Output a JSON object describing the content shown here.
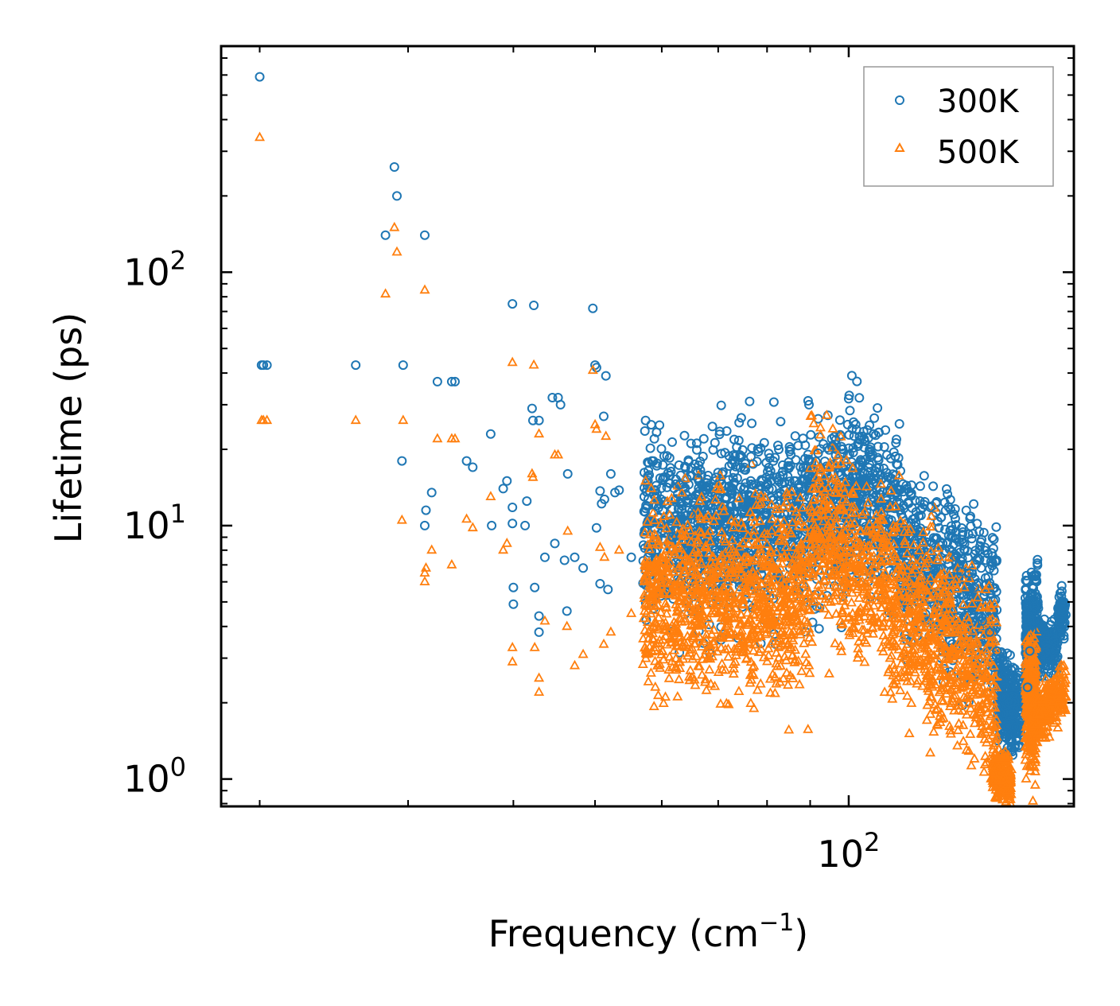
{
  "chart_data": {
    "type": "scatter",
    "xscale": "log",
    "yscale": "log",
    "xlabel": "Frequency (cm",
    "xlabel_sup": "−1",
    "xlabel_end": ")",
    "ylabel": "Lifetime (ps)",
    "xlim": [
      18,
      185
    ],
    "ylim": [
      0.78,
      780
    ],
    "x_ticks": [
      {
        "base": "10",
        "exp": "2",
        "value": 100
      }
    ],
    "y_ticks": [
      {
        "base": "10",
        "exp": "0",
        "value": 1
      },
      {
        "base": "10",
        "exp": "1",
        "value": 10
      },
      {
        "base": "10",
        "exp": "2",
        "value": 100
      }
    ],
    "legend": {
      "position": "top-right",
      "entries": [
        "300K",
        "500K"
      ]
    },
    "series": [
      {
        "name": "300K",
        "marker": "circle-open",
        "color": "#1f77b4",
        "points": [
          [
            20.0,
            590
          ],
          [
            20.1,
            43
          ],
          [
            20.2,
            43
          ],
          [
            20.4,
            43
          ],
          [
            26.0,
            43
          ],
          [
            28.2,
            140
          ],
          [
            28.9,
            260
          ],
          [
            29.1,
            200
          ],
          [
            29.6,
            43
          ],
          [
            29.5,
            18
          ],
          [
            31.4,
            140
          ],
          [
            32.5,
            37
          ],
          [
            32.0,
            13.5
          ],
          [
            31.5,
            11.5
          ],
          [
            31.4,
            10
          ],
          [
            33.8,
            37
          ],
          [
            34.1,
            37
          ],
          [
            35.2,
            18
          ],
          [
            35.8,
            17
          ],
          [
            37.6,
            23
          ],
          [
            39.3,
            15
          ],
          [
            38.9,
            14
          ],
          [
            37.7,
            10
          ],
          [
            39.9,
            75
          ],
          [
            42.3,
            74
          ],
          [
            42.1,
            29
          ],
          [
            42.2,
            26
          ],
          [
            42.9,
            26
          ],
          [
            39.9,
            11.8
          ],
          [
            39.9,
            10.2
          ],
          [
            41.3,
            10
          ],
          [
            41.5,
            12.5
          ],
          [
            40.0,
            5.7
          ],
          [
            40.0,
            4.9
          ],
          [
            42.4,
            5.7
          ],
          [
            42.9,
            4.4
          ],
          [
            42.9,
            3.8
          ],
          [
            43.6,
            7.5
          ],
          [
            44.8,
            8.5
          ],
          [
            44.5,
            32
          ],
          [
            45.2,
            32
          ],
          [
            45.5,
            30
          ],
          [
            46.4,
            16
          ],
          [
            47.3,
            7.5
          ],
          [
            46.0,
            7.3
          ],
          [
            46.3,
            4.6
          ],
          [
            48.4,
            6.8
          ],
          [
            49.7,
            72
          ],
          [
            50.0,
            43
          ],
          [
            50.2,
            42
          ],
          [
            51.5,
            39
          ],
          [
            50.7,
            13.7
          ],
          [
            50.9,
            12.2
          ],
          [
            51.2,
            27
          ],
          [
            51.3,
            12.7
          ],
          [
            52.2,
            16
          ],
          [
            52.8,
            13.5
          ],
          [
            53.4,
            13.8
          ],
          [
            50.2,
            9.8
          ],
          [
            50.7,
            5.9
          ],
          [
            51.8,
            5.6
          ],
          [
            55.2,
            7.5
          ],
          [
            57.2,
            13
          ],
          [
            57.4,
            26
          ],
          [
            58.3,
            25
          ],
          [
            58.8,
            22
          ],
          [
            58.4,
            18
          ],
          [
            59.1,
            12
          ],
          [
            61.3,
            18.5
          ],
          [
            60.3,
            15.5
          ],
          [
            61.8,
            9
          ],
          [
            63.0,
            14.5
          ],
          [
            65.0,
            11
          ],
          [
            67.3,
            22
          ],
          [
            66.2,
            15.4
          ],
          [
            69.6,
            15.5
          ],
          [
            71.3,
            12.8
          ],
          [
            73.0,
            19
          ],
          [
            74.3,
            19
          ],
          [
            76.0,
            12.5
          ],
          [
            77.0,
            17.5
          ],
          [
            79.0,
            15
          ],
          [
            80.6,
            18.5
          ],
          [
            82.6,
            20
          ],
          [
            85.1,
            19.6
          ],
          [
            87.1,
            20.7
          ],
          [
            89.7,
            18
          ],
          [
            92.0,
            19.3
          ],
          [
            94.8,
            19.9
          ],
          [
            96.5,
            21.8
          ],
          [
            98.0,
            20.5
          ],
          [
            100.0,
            20.2
          ],
          [
            102.5,
            21
          ],
          [
            104.5,
            21.5
          ],
          [
            107.0,
            23
          ],
          [
            103.7,
            22.5
          ],
          [
            108.5,
            18.2
          ],
          [
            111.0,
            19.0
          ],
          [
            114.0,
            17.5
          ],
          [
            116.0,
            14.6
          ],
          [
            118.7,
            13.4
          ],
          [
            121.5,
            12.5
          ],
          [
            125.0,
            11.8
          ],
          [
            128.0,
            9.8
          ],
          [
            131.0,
            8.6
          ],
          [
            134.0,
            7.5
          ],
          [
            136.0,
            6.6
          ],
          [
            139.0,
            6.5
          ],
          [
            141.0,
            5.7
          ],
          [
            144.0,
            4.2
          ],
          [
            147.0,
            3.8
          ],
          [
            150.0,
            3.2
          ],
          [
            152.0,
            2.6
          ],
          [
            153.5,
            2.3
          ],
          [
            155.0,
            2.0
          ],
          [
            156.5,
            1.8
          ],
          [
            158.0,
            1.6
          ],
          [
            163.0,
            2.3
          ],
          [
            164.0,
            3.2
          ],
          [
            165.0,
            4.5
          ],
          [
            166.0,
            4.8
          ],
          [
            168.5,
            3.9
          ],
          [
            171.0,
            3.5
          ],
          [
            172.5,
            3.8
          ],
          [
            175.0,
            3.5
          ],
          [
            176.5,
            3.3
          ],
          [
            178.0,
            4.2
          ],
          [
            179.5,
            4.8
          ],
          [
            180.0,
            5.0
          ]
        ]
      },
      {
        "name": "500K",
        "marker": "triangle-open",
        "color": "#ff7f0e",
        "points": [
          [
            20.0,
            340
          ],
          [
            20.1,
            26
          ],
          [
            20.2,
            26
          ],
          [
            20.4,
            26
          ],
          [
            26.0,
            26
          ],
          [
            28.2,
            82
          ],
          [
            28.9,
            150
          ],
          [
            29.1,
            120
          ],
          [
            29.6,
            26
          ],
          [
            29.5,
            10.5
          ],
          [
            31.4,
            85
          ],
          [
            32.5,
            22
          ],
          [
            32.0,
            8.0
          ],
          [
            31.5,
            6.8
          ],
          [
            31.4,
            6.5
          ],
          [
            31.4,
            6.0
          ],
          [
            33.8,
            22
          ],
          [
            34.1,
            22
          ],
          [
            33.8,
            7.0
          ],
          [
            35.2,
            10.6
          ],
          [
            35.8,
            9.8
          ],
          [
            37.6,
            13
          ],
          [
            39.3,
            8.5
          ],
          [
            38.9,
            8.0
          ],
          [
            39.9,
            44
          ],
          [
            42.3,
            43
          ],
          [
            42.1,
            16
          ],
          [
            42.2,
            15.5
          ],
          [
            42.9,
            23
          ],
          [
            39.9,
            3.3
          ],
          [
            39.9,
            2.9
          ],
          [
            42.4,
            3.3
          ],
          [
            42.9,
            2.5
          ],
          [
            42.9,
            2.2
          ],
          [
            43.6,
            4.2
          ],
          [
            44.8,
            19
          ],
          [
            45.2,
            19
          ],
          [
            46.4,
            9.5
          ],
          [
            46.3,
            4.0
          ],
          [
            47.3,
            2.8
          ],
          [
            48.4,
            3.1
          ],
          [
            49.7,
            41
          ],
          [
            50.0,
            25
          ],
          [
            50.2,
            24
          ],
          [
            51.5,
            22.5
          ],
          [
            50.7,
            8.2
          ],
          [
            51.3,
            7.5
          ],
          [
            52.2,
            3.8
          ],
          [
            51.2,
            3.4
          ],
          [
            53.4,
            8
          ],
          [
            55.2,
            4.5
          ],
          [
            57.2,
            6
          ],
          [
            57.4,
            15
          ],
          [
            58.3,
            14
          ],
          [
            58.8,
            12.6
          ],
          [
            59.1,
            6.6
          ],
          [
            61.3,
            11
          ],
          [
            63.0,
            4.3
          ],
          [
            65.0,
            8.6
          ],
          [
            67.3,
            5.6
          ],
          [
            69.6,
            4.6
          ],
          [
            71.3,
            3.7
          ],
          [
            73.0,
            9.8
          ],
          [
            75.0,
            3.3
          ],
          [
            76.9,
            4.1
          ],
          [
            79.5,
            4.5
          ],
          [
            82.6,
            3.0
          ],
          [
            85.1,
            3.8
          ],
          [
            87.1,
            6.8
          ],
          [
            89.7,
            2.8
          ],
          [
            92.0,
            5.5
          ],
          [
            94.8,
            2.6
          ],
          [
            97.0,
            11.5
          ],
          [
            100.0,
            6.8
          ],
          [
            102.5,
            3.0
          ],
          [
            104.5,
            11.3
          ],
          [
            107.0,
            4.2
          ],
          [
            110.0,
            8.6
          ],
          [
            113.0,
            4.8
          ],
          [
            116.0,
            3.6
          ],
          [
            118.5,
            2.9
          ],
          [
            121.0,
            2.8
          ],
          [
            125.0,
            1.8
          ],
          [
            128.0,
            2.9
          ],
          [
            132.0,
            1.55
          ],
          [
            135.0,
            2.0
          ],
          [
            138.0,
            1.3
          ],
          [
            141.0,
            1.2
          ],
          [
            144.0,
            1.5
          ],
          [
            147.0,
            1.2
          ],
          [
            150.0,
            1.1
          ],
          [
            152.5,
            1.0
          ],
          [
            154.0,
            0.95
          ],
          [
            163.0,
            1.5
          ],
          [
            164.5,
            2.0
          ],
          [
            165.5,
            2.6
          ],
          [
            166.5,
            2.8
          ],
          [
            170.0,
            2.0
          ],
          [
            173.0,
            1.8
          ],
          [
            175.0,
            1.85
          ],
          [
            177.5,
            2.2
          ],
          [
            179.0,
            2.5
          ],
          [
            180.0,
            2.8
          ]
        ]
      }
    ]
  }
}
